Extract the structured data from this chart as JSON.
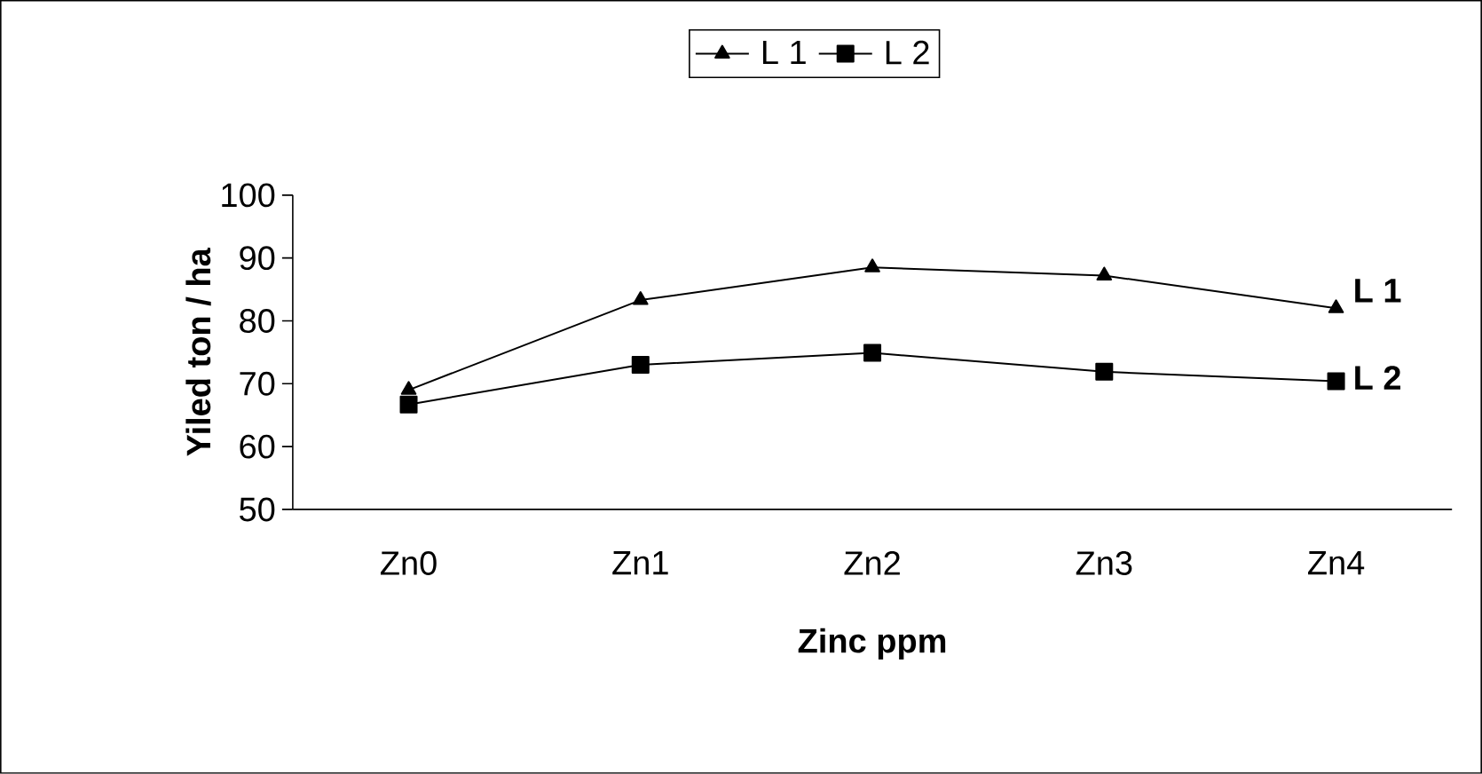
{
  "chart_data": {
    "type": "line",
    "xlabel": "Zinc ppm",
    "ylabel": "Yiled ton / ha",
    "categories": [
      "Zn0",
      "Zn1",
      "Zn2",
      "Zn3",
      "Zn4"
    ],
    "series": [
      {
        "name": "L 1",
        "color": "#000000",
        "marker": "triangle",
        "values": [
          69,
          83.3,
          88.5,
          87.2,
          82
        ]
      },
      {
        "name": "L 2",
        "color": "#000000",
        "marker": "square",
        "values": [
          66.7,
          73,
          74.9,
          71.9,
          70.4
        ]
      }
    ],
    "ylim": [
      50,
      100
    ],
    "yticks": [
      50,
      60,
      70,
      80,
      90,
      100
    ],
    "grid": false,
    "legend": "top"
  }
}
